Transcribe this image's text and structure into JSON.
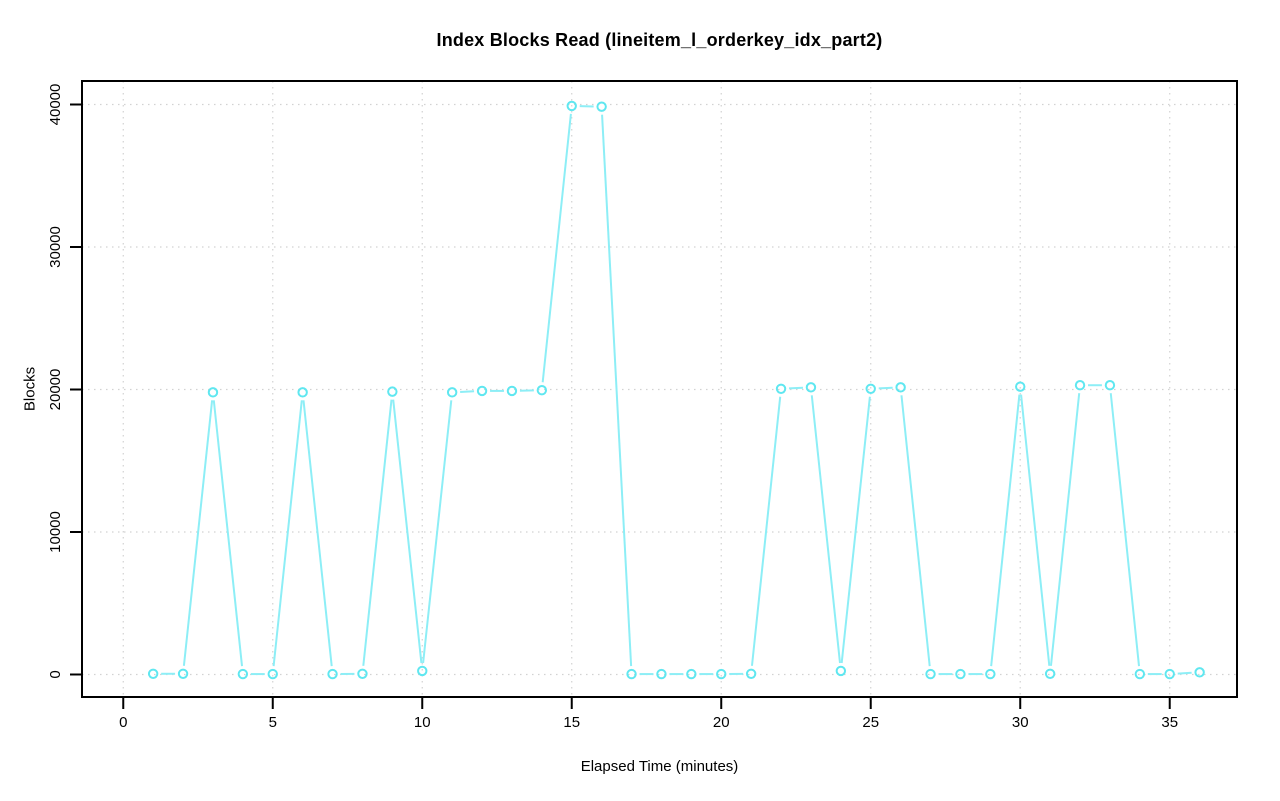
{
  "chart_data": {
    "type": "line",
    "title": "Index Blocks Read (lineitem_l_orderkey_idx_part2)",
    "xlabel": "Elapsed Time (minutes)",
    "ylabel": "Blocks",
    "x": [
      1,
      2,
      3,
      4,
      5,
      6,
      7,
      8,
      9,
      10,
      11,
      12,
      13,
      14,
      15,
      16,
      17,
      18,
      19,
      20,
      21,
      22,
      23,
      24,
      25,
      26,
      27,
      28,
      29,
      30,
      31,
      32,
      33,
      34,
      35,
      36
    ],
    "values": [
      50,
      50,
      19800,
      30,
      30,
      19800,
      30,
      50,
      19850,
      250,
      19800,
      19900,
      19900,
      19950,
      39900,
      39850,
      30,
      30,
      30,
      30,
      50,
      20050,
      20150,
      250,
      20050,
      20150,
      30,
      30,
      30,
      20200,
      50,
      20300,
      20300,
      30,
      30,
      150
    ],
    "x_ticks": [
      0,
      5,
      10,
      15,
      20,
      25,
      30,
      35
    ],
    "y_ticks": [
      0,
      10000,
      20000,
      30000,
      40000
    ],
    "xlim": [
      -1.38,
      37.25
    ],
    "ylim": [
      -1580,
      41650
    ],
    "grid": "dotted",
    "legend": "none",
    "marker": "open-circle",
    "line_style": "segments-with-point-gaps",
    "line_color": "#8deef6",
    "marker_color": "#5fe7f0",
    "grid_color": "#d2d2d2",
    "axis_color": "#000000",
    "background_color": "#ffffff"
  }
}
